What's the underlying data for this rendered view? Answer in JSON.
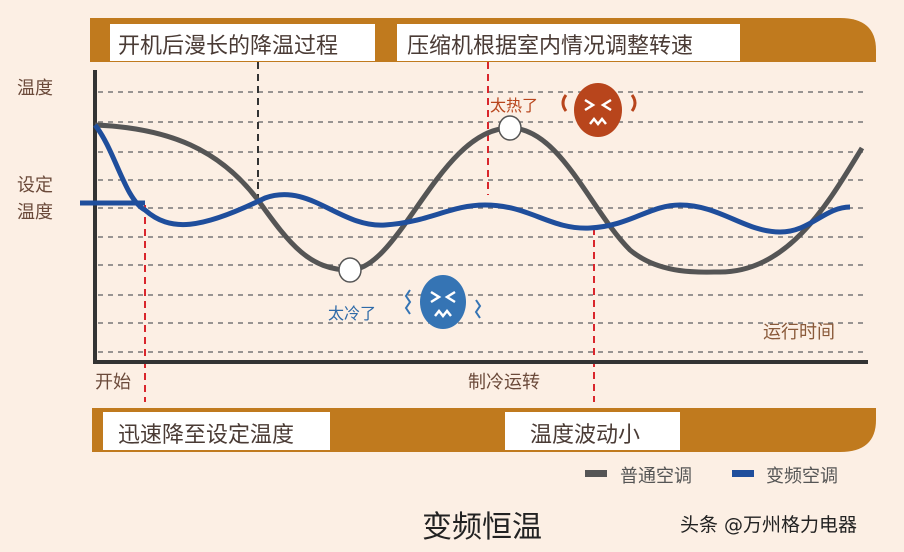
{
  "top_banner": {
    "left": "开机后漫长的降温过程",
    "right": "压缩机根据室内情况调整转速"
  },
  "bottom_banner": {
    "left": "迅速降至设定温度",
    "right": "温度波动小"
  },
  "y_axis": {
    "top_label": "温度",
    "set_label_1": "设定",
    "set_label_2": "温度"
  },
  "x_axis": {
    "start": "开始",
    "middle": "制冷运转",
    "end": "运行时间"
  },
  "annotations": {
    "hot": "太热了",
    "cold": "太冷了"
  },
  "legend": [
    {
      "label": "普通空调",
      "color": "#555555"
    },
    {
      "label": "变频空调",
      "color": "#1f4e9c"
    }
  ],
  "title": "变频恒温",
  "watermark": "头条 @万州格力电器",
  "colors": {
    "banner": "#c07a1e",
    "background": "#fcefe4",
    "marker": "#d9262c",
    "hot_face": "#b8451c",
    "cold_face": "#3574b4"
  }
}
